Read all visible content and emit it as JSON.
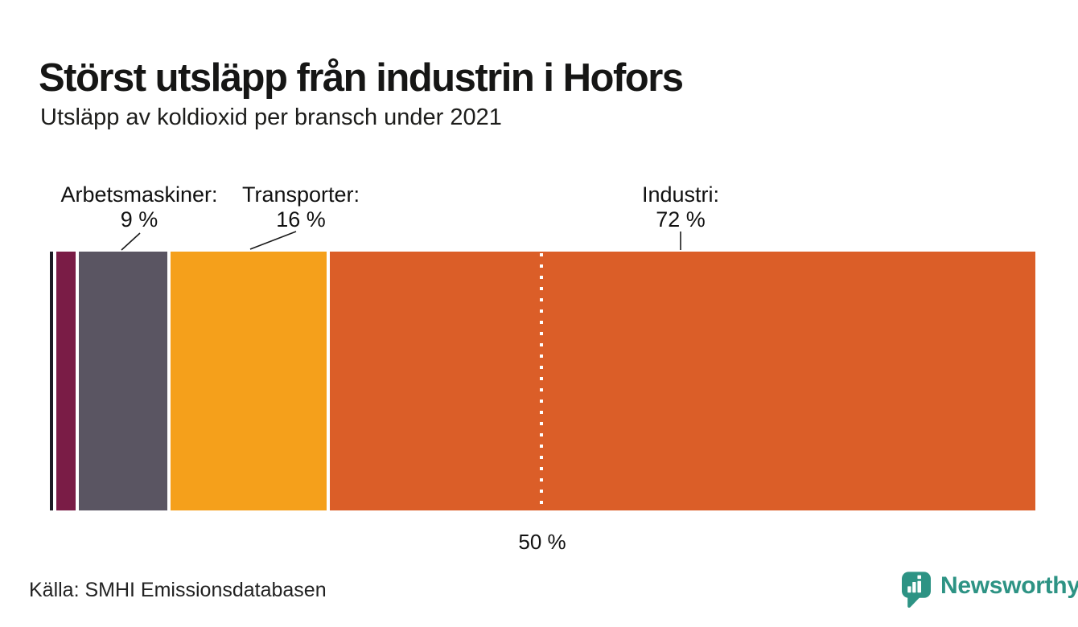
{
  "header": {
    "title": "Störst utsläpp från industrin i Hofors",
    "subtitle": "Utsläpp av koldioxid per bransch under 2021"
  },
  "chart_data": {
    "type": "bar",
    "subtype": "horizontal-stacked-percentage",
    "title": "Störst utsläpp från industrin i Hofors",
    "subtitle": "Utsläpp av koldioxid per bransch under 2021",
    "unit": "%",
    "xlim": [
      0,
      100
    ],
    "grid": false,
    "segments": [
      {
        "name": "(unlabeled small sector)",
        "value": 0.3,
        "color": "#1c1c24",
        "label": "",
        "value_label": ""
      },
      {
        "name": "(unlabeled sector)",
        "value": 2,
        "color": "#7a1c46",
        "label": "",
        "value_label": ""
      },
      {
        "name": "Arbetsmaskiner",
        "value": 9,
        "color": "#5a5562",
        "label": "Arbetsmaskiner:",
        "value_label": "9 %"
      },
      {
        "name": "Transporter",
        "value": 16,
        "color": "#f5a01b",
        "label": "Transporter:",
        "value_label": "16 %"
      },
      {
        "name": "Industri",
        "value": 72,
        "color": "#db5e28",
        "label": "Industri:",
        "value_label": "72 %"
      }
    ],
    "reference_line": {
      "position": 50,
      "label": "50 %",
      "style": "dotted-white"
    }
  },
  "footer": {
    "source": "Källa: SMHI Emissionsdatabasen",
    "brand": "Newsworthy"
  },
  "colors": {
    "background": "#ffffff",
    "text": "#1a1a1a",
    "brand_teal": "#2d9384",
    "connector": "#1a1a1a"
  }
}
